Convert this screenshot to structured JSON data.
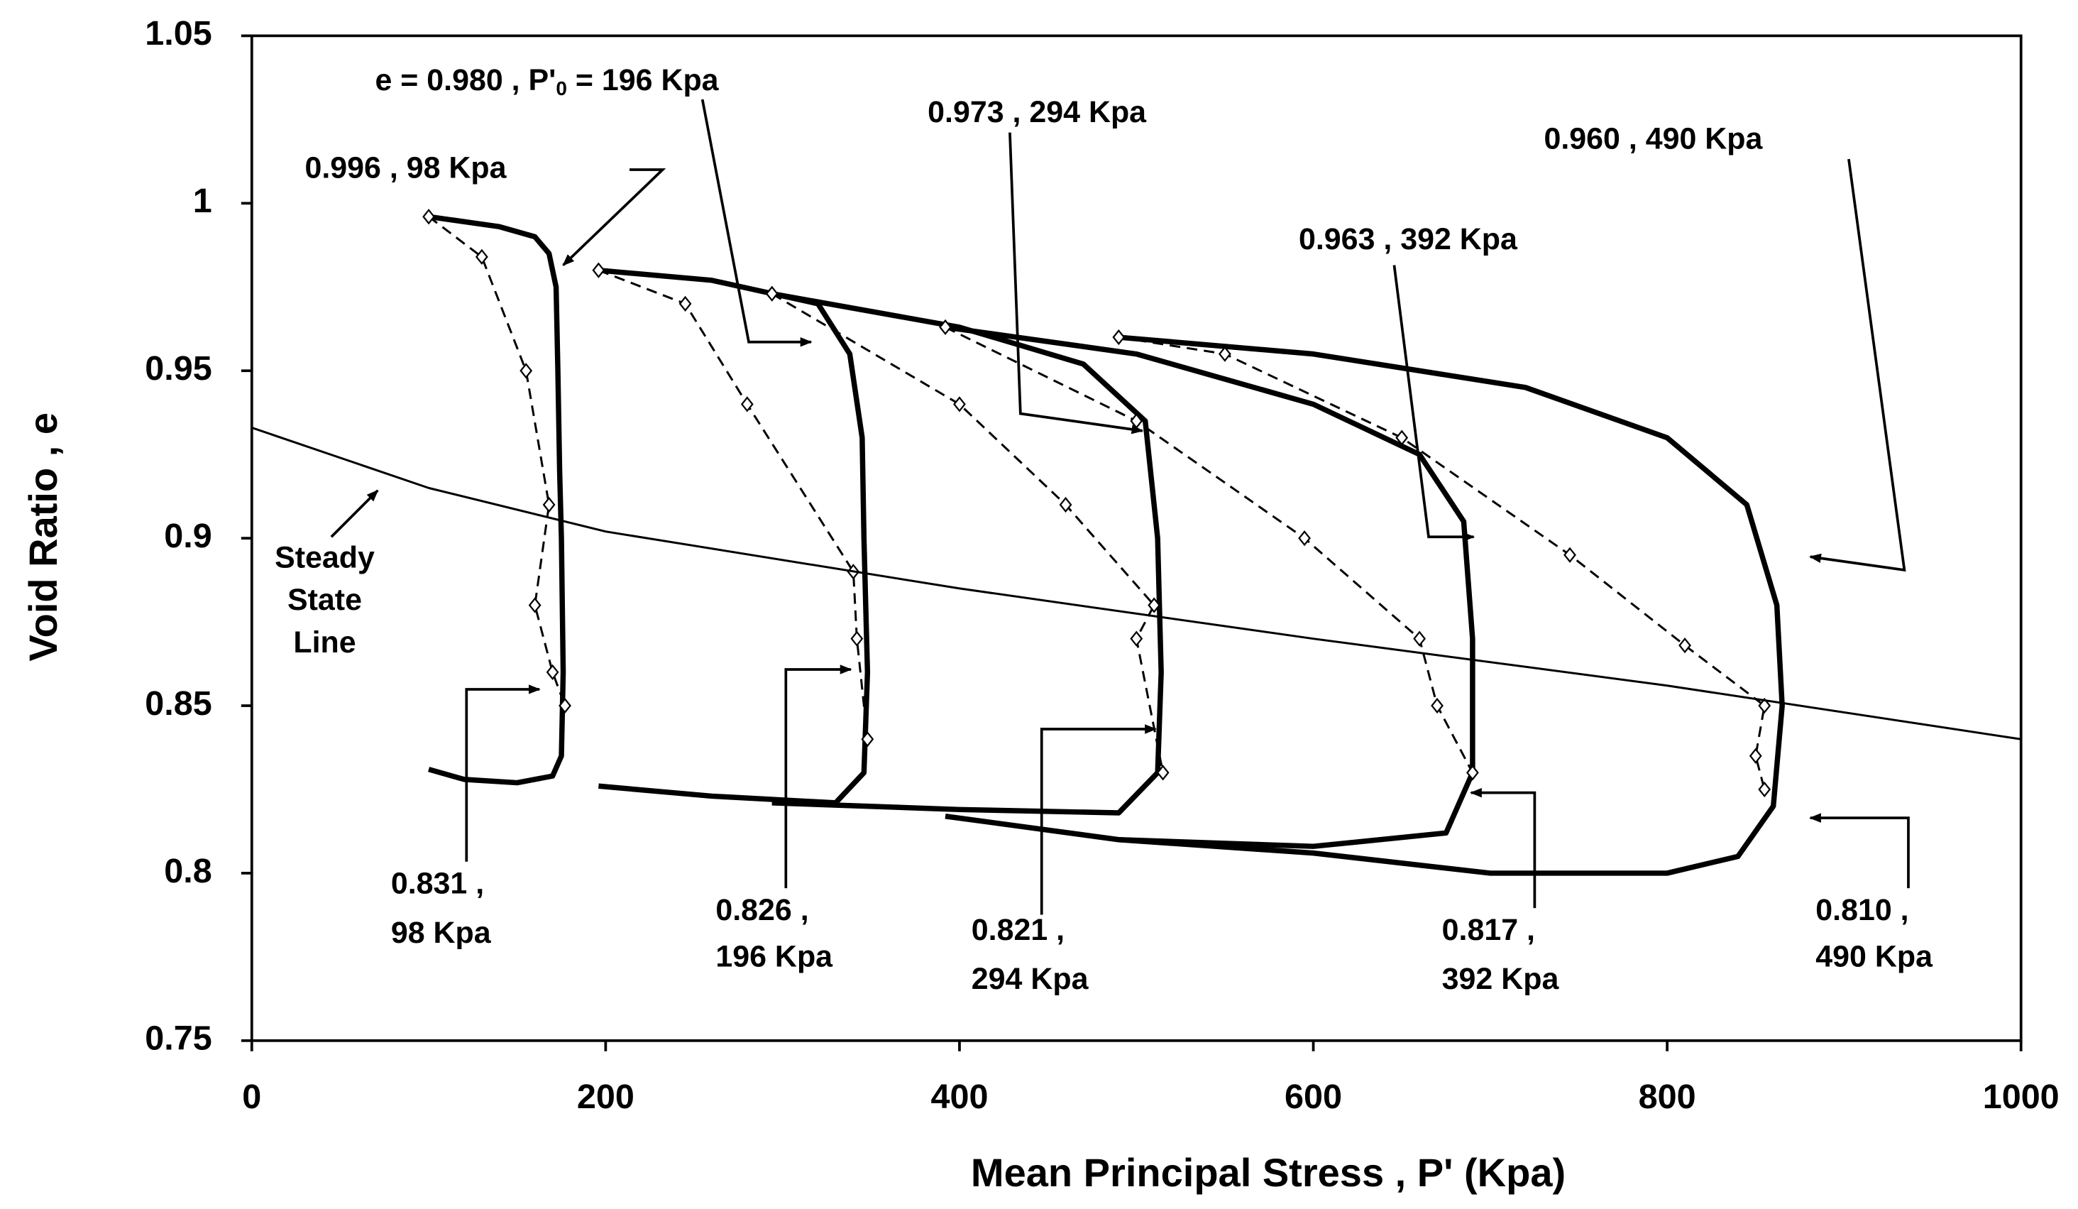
{
  "chart_data": {
    "type": "line",
    "xlabel": "Mean Principal Stress , P'   (Kpa)",
    "ylabel": "Void Ratio , e",
    "xlim": [
      0,
      1000
    ],
    "xticks": [
      0,
      200,
      400,
      600,
      800,
      1000
    ],
    "ylim": [
      0.75,
      1.05
    ],
    "yticks": [
      0.75,
      0.8,
      0.85,
      0.9,
      0.95,
      1,
      1.05
    ],
    "grid": false,
    "series": [
      {
        "style": "solid",
        "color": "#000000",
        "x": [
          100,
          140,
          160,
          168,
          172,
          173,
          174,
          175,
          176,
          175,
          170,
          150,
          120,
          100
        ],
        "values": [
          0.996,
          0.993,
          0.99,
          0.985,
          0.975,
          0.95,
          0.92,
          0.9,
          0.86,
          0.835,
          0.829,
          0.827,
          0.828,
          0.831
        ]
      },
      {
        "style": "dashed",
        "color": "#000000",
        "x": [
          100,
          130,
          155,
          168,
          160,
          170,
          177
        ],
        "values": [
          0.996,
          0.984,
          0.95,
          0.91,
          0.88,
          0.86,
          0.85
        ]
      },
      {
        "style": "solid",
        "color": "#000000",
        "x": [
          196,
          260,
          320,
          338,
          345,
          346,
          348,
          346,
          330,
          260,
          196
        ],
        "values": [
          0.98,
          0.977,
          0.97,
          0.955,
          0.93,
          0.9,
          0.86,
          0.83,
          0.821,
          0.823,
          0.826
        ]
      },
      {
        "style": "dashed",
        "color": "#000000",
        "x": [
          196,
          245,
          280,
          340,
          342,
          348
        ],
        "values": [
          0.98,
          0.97,
          0.94,
          0.89,
          0.87,
          0.84
        ]
      },
      {
        "style": "solid",
        "color": "#000000",
        "x": [
          294,
          400,
          470,
          505,
          512,
          514,
          512,
          490,
          400,
          294
        ],
        "values": [
          0.973,
          0.963,
          0.952,
          0.935,
          0.9,
          0.86,
          0.83,
          0.818,
          0.819,
          0.821
        ]
      },
      {
        "style": "dashed",
        "color": "#000000",
        "x": [
          294,
          400,
          460,
          510,
          500,
          515
        ],
        "values": [
          0.973,
          0.94,
          0.91,
          0.88,
          0.87,
          0.83
        ]
      },
      {
        "style": "solid",
        "color": "#000000",
        "x": [
          392,
          500,
          600,
          660,
          685,
          690,
          690,
          675,
          600,
          490,
          392
        ],
        "values": [
          0.963,
          0.955,
          0.94,
          0.925,
          0.905,
          0.87,
          0.83,
          0.812,
          0.808,
          0.81,
          0.817
        ]
      },
      {
        "style": "dashed",
        "color": "#000000",
        "x": [
          392,
          500,
          595,
          660,
          670,
          690
        ],
        "values": [
          0.963,
          0.935,
          0.9,
          0.87,
          0.85,
          0.83
        ]
      },
      {
        "style": "solid",
        "color": "#000000",
        "x": [
          490,
          600,
          720,
          800,
          845,
          862,
          865,
          860,
          840,
          800,
          700,
          600,
          490
        ],
        "values": [
          0.96,
          0.955,
          0.945,
          0.93,
          0.91,
          0.88,
          0.85,
          0.82,
          0.805,
          0.8,
          0.8,
          0.806,
          0.81
        ]
      },
      {
        "style": "dashed",
        "color": "#000000",
        "x": [
          490,
          550,
          650,
          745,
          810,
          855,
          850,
          855
        ],
        "values": [
          0.96,
          0.955,
          0.93,
          0.895,
          0.868,
          0.85,
          0.835,
          0.825
        ]
      },
      {
        "style": "thin",
        "color": "#000000",
        "x": [
          0,
          100,
          200,
          400,
          600,
          800,
          1000
        ],
        "values": [
          0.933,
          0.915,
          0.902,
          0.885,
          0.87,
          0.856,
          0.84
        ]
      }
    ],
    "annotations": [
      {
        "lines": [
          [
            "e = 0.980 , P'",
            "0",
            " = 196 Kpa"
          ]
        ]
      },
      {
        "lines": [
          "0.996  , 98 Kpa"
        ]
      },
      {
        "lines": [
          "0.973 , 294 Kpa"
        ]
      },
      {
        "lines": [
          "0.960 , 490 Kpa"
        ]
      },
      {
        "lines": [
          "0.963 , 392 Kpa"
        ]
      },
      {
        "lines": [
          "Steady",
          "State",
          "Line"
        ]
      },
      {
        "lines": [
          "0.831 ,",
          "98 Kpa"
        ]
      },
      {
        "lines": [
          "0.826 ,",
          "196 Kpa"
        ]
      },
      {
        "lines": [
          "0.821 ,",
          "294 Kpa"
        ]
      },
      {
        "lines": [
          "0.817 ,",
          "392 Kpa"
        ]
      },
      {
        "lines": [
          "0.810 ,",
          "490 Kpa"
        ]
      }
    ]
  }
}
